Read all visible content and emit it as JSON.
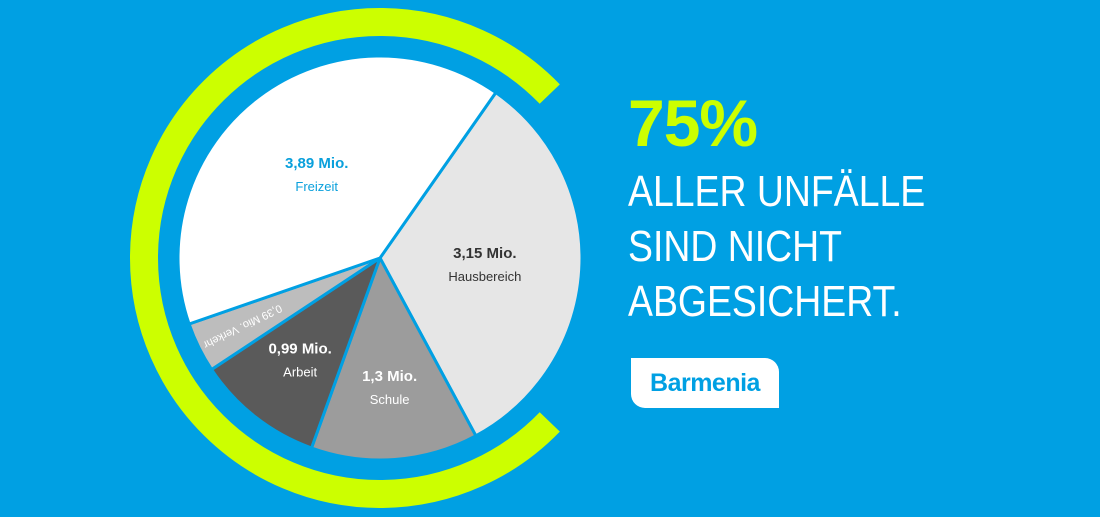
{
  "chart_data": {
    "type": "pie",
    "slices": [
      {
        "label": "Hausbereich",
        "value_text": "3,15 Mio.",
        "value": 3.15,
        "color": "#E6E6E6",
        "text_color": "#333333"
      },
      {
        "label": "Schule",
        "value_text": "1,3 Mio.",
        "value": 1.3,
        "color": "#9C9C9C",
        "text_color": "#ffffff"
      },
      {
        "label": "Arbeit",
        "value_text": "0,99 Mio.",
        "value": 0.99,
        "color": "#5A5A5A",
        "text_color": "#ffffff"
      },
      {
        "label": "Verkehr",
        "value_text": "0,39 Mio.",
        "value": 0.39,
        "color": "#BDBDBD",
        "text_color": "#ffffff"
      },
      {
        "label": "Freizeit",
        "value_text": "3,89 Mio.",
        "value": 3.89,
        "color": "#FFFFFF",
        "text_color": "#0AA0DC"
      }
    ]
  },
  "headline": {
    "percent": "75%",
    "lines": [
      "ALLER UNFÄLLE",
      "SIND NICHT",
      "ABGESICHERT."
    ]
  },
  "brand": {
    "logo_text": "Barmenia"
  },
  "colors": {
    "background": "#00A0E3",
    "accent": "#CCFF00",
    "separator": "#00A0E3"
  }
}
